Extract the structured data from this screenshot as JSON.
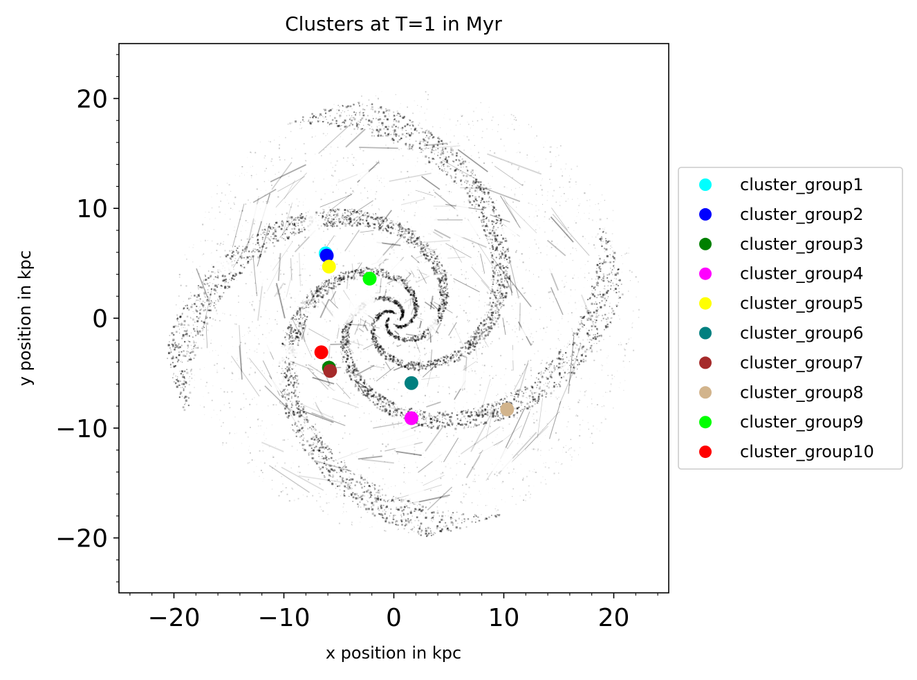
{
  "chart_data": {
    "type": "scatter",
    "title": "Clusters at T=1 in Myr",
    "xlabel": "x position in kpc",
    "ylabel": "y position in kpc",
    "xlim": [
      -25,
      25
    ],
    "ylim": [
      -25,
      25
    ],
    "xticks": [
      -20,
      -10,
      0,
      10,
      20
    ],
    "yticks": [
      20,
      10,
      0,
      -10,
      -20
    ],
    "background_image": "grayscale spiral galaxy gas density map",
    "legend_position": "right",
    "series": [
      {
        "name": "cluster_group1",
        "color": "#00ffff",
        "points": [
          [
            -6.2,
            5.9
          ]
        ]
      },
      {
        "name": "cluster_group2",
        "color": "#0000ff",
        "points": [
          [
            -6.1,
            5.7
          ]
        ]
      },
      {
        "name": "cluster_group3",
        "color": "#008000",
        "points": [
          [
            -5.9,
            -4.5
          ]
        ]
      },
      {
        "name": "cluster_group4",
        "color": "#ff00ff",
        "points": [
          [
            1.6,
            -9.1
          ]
        ]
      },
      {
        "name": "cluster_group5",
        "color": "#ffff00",
        "points": [
          [
            -5.9,
            4.7
          ]
        ]
      },
      {
        "name": "cluster_group6",
        "color": "#008080",
        "points": [
          [
            1.6,
            -5.9
          ]
        ]
      },
      {
        "name": "cluster_group7",
        "color": "#a52a2a",
        "points": [
          [
            -5.8,
            -4.8
          ]
        ]
      },
      {
        "name": "cluster_group8",
        "color": "#d2b48c",
        "points": [
          [
            10.3,
            -8.3
          ]
        ]
      },
      {
        "name": "cluster_group9",
        "color": "#00ff00",
        "points": [
          [
            -2.2,
            3.6
          ]
        ]
      },
      {
        "name": "cluster_group10",
        "color": "#ff0000",
        "points": [
          [
            -6.6,
            -3.1
          ]
        ]
      }
    ]
  }
}
